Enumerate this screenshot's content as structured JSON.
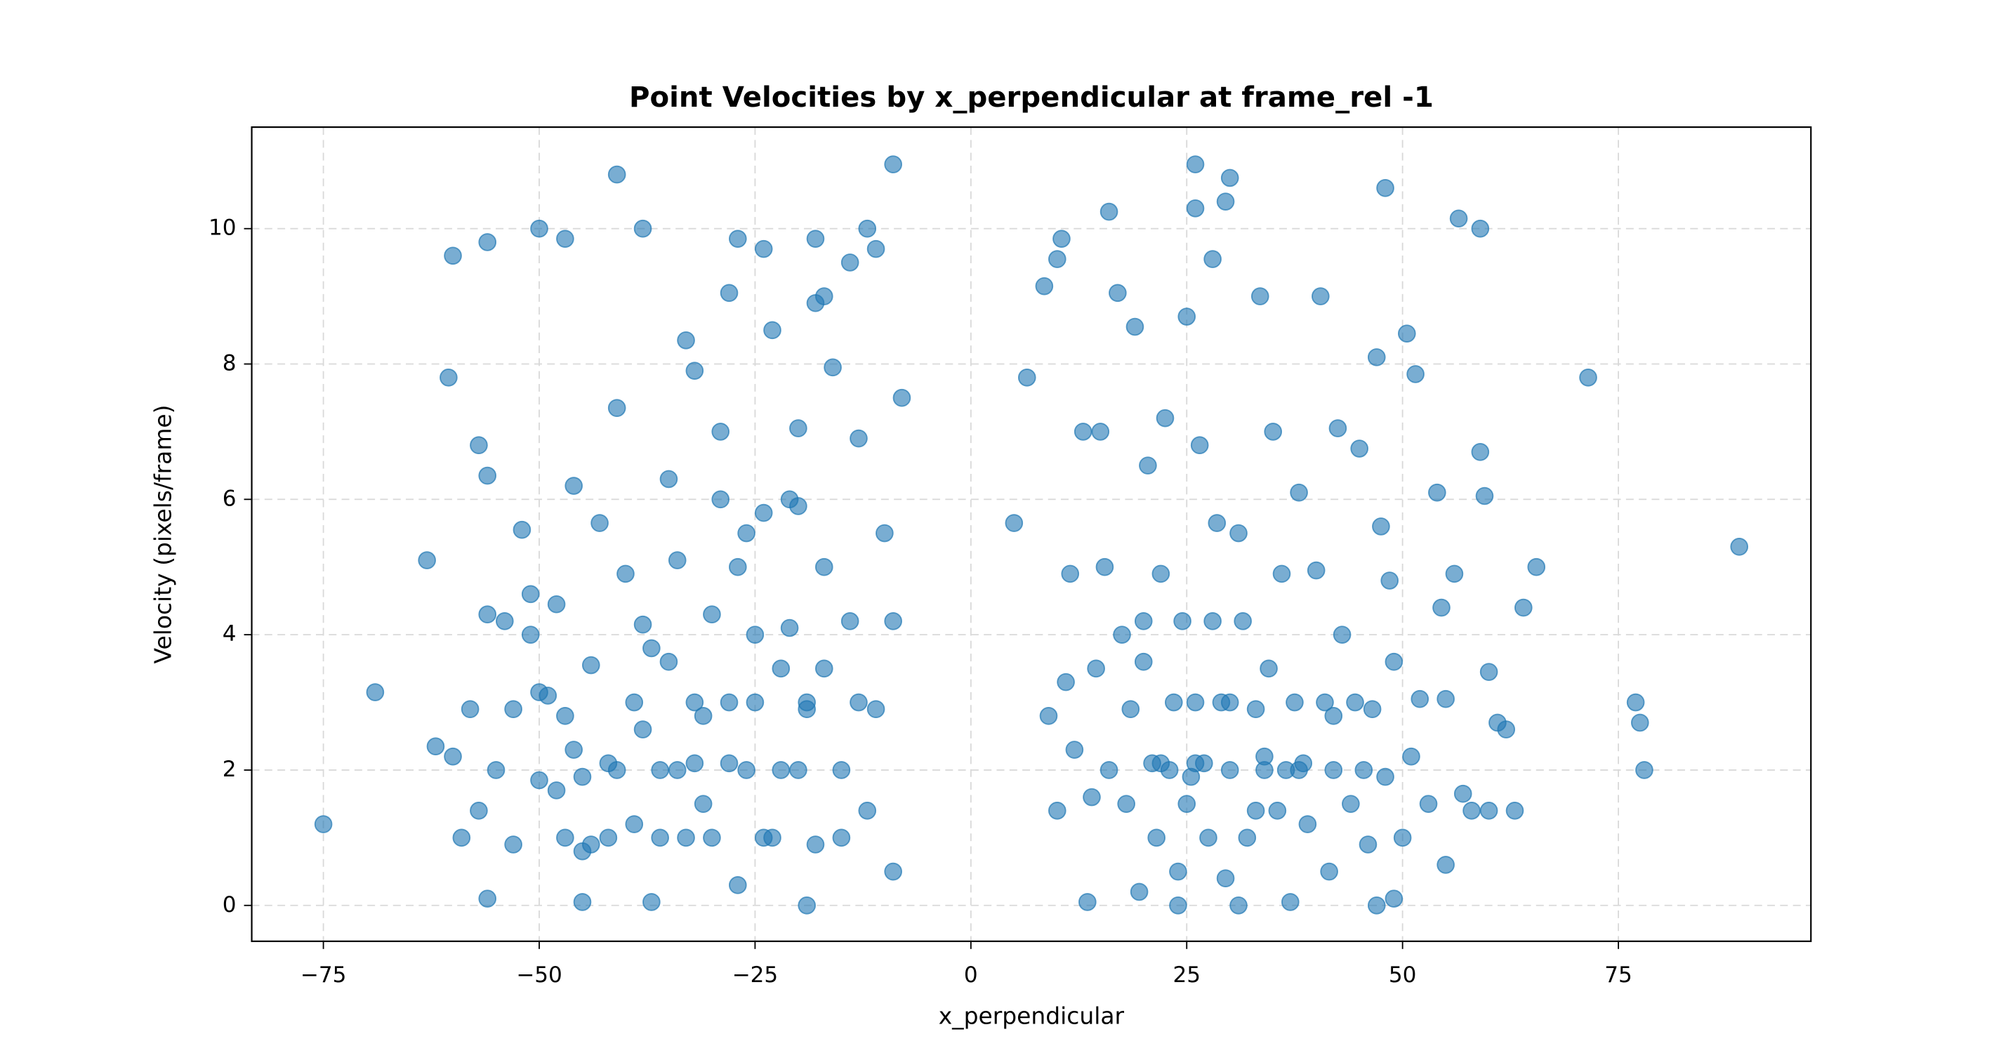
{
  "chart_data": {
    "type": "scatter",
    "title": "Point Velocities by x_perpendicular at frame_rel -1",
    "x_label": "x_perpendicular",
    "y_label": "Velocity (pixels/frame)",
    "color": "#1f77b4",
    "grid": true,
    "xlim": [
      -83.3,
      97.3
    ],
    "ylim": [
      -0.53,
      11.5
    ],
    "xticks": [
      {
        "value": -75,
        "label": "−75"
      },
      {
        "value": -50,
        "label": "−50"
      },
      {
        "value": -25,
        "label": "−25"
      },
      0,
      25,
      50,
      75
    ],
    "yticks": [
      0,
      2,
      4,
      6,
      8,
      10
    ],
    "x": [
      -75,
      -69,
      -63,
      -62,
      -60,
      -60.5,
      -56,
      -50,
      -47,
      -41,
      -38,
      -27,
      -24,
      -18,
      -12,
      -9,
      -11,
      5,
      6.5,
      8.5,
      10,
      10.5,
      16,
      26,
      26,
      29.5,
      30,
      48,
      56.5,
      59,
      71.5,
      89,
      77,
      77.5,
      78,
      64,
      65.5,
      60,
      61,
      62,
      60,
      63,
      -56,
      -45,
      -37,
      -19,
      24,
      31,
      47,
      49,
      55,
      -58,
      -57,
      -55,
      -54,
      -53,
      -52,
      -51,
      -50,
      -49,
      -48,
      -47,
      -46,
      -45,
      -44,
      -43,
      -42,
      -41,
      -40,
      -39,
      -38,
      -37,
      -36,
      -35,
      -34,
      -33,
      -32,
      -31,
      -30,
      -29,
      -28,
      -27,
      -26,
      -25,
      -24,
      -23,
      -22,
      -21,
      -20,
      -19,
      -18,
      -17,
      -16,
      -15,
      -14,
      -13,
      -12,
      -11,
      -10,
      -9,
      -8,
      -9,
      -13,
      -15,
      -17,
      -20,
      -22,
      -25,
      -28,
      -30,
      -32,
      -35,
      -38,
      -41,
      -44,
      -47,
      -50,
      -53,
      -56,
      -60,
      -59,
      -57,
      -56,
      -51,
      -46,
      -33,
      -29,
      -26,
      -23,
      -19,
      -21,
      -24,
      -27,
      -31,
      -34,
      -36,
      -39,
      -42,
      -45,
      -48,
      -18,
      -17,
      -14,
      -32,
      -28,
      -20,
      9,
      10,
      11,
      11.5,
      12,
      13,
      13.5,
      14,
      14.5,
      15,
      15.5,
      16,
      17,
      17.5,
      18,
      18.5,
      19,
      19.5,
      20,
      20.5,
      21,
      21.5,
      22,
      22.5,
      23,
      23.5,
      24,
      24.5,
      25,
      25.5,
      26,
      26.5,
      27,
      27.5,
      28,
      28.5,
      29,
      29.5,
      30,
      31,
      31.5,
      32,
      33,
      33.5,
      34,
      34.5,
      35,
      35.5,
      36,
      36.5,
      37,
      37.5,
      38,
      38.5,
      39,
      40,
      40.5,
      41,
      41.5,
      42,
      42.5,
      43,
      44,
      44.5,
      45,
      45.5,
      46,
      46.5,
      47,
      47.5,
      48,
      48.5,
      49,
      50,
      50.5,
      51,
      51.5,
      52,
      53,
      54,
      54.5,
      55,
      56,
      57,
      58,
      59,
      59.5,
      22,
      26,
      30,
      34,
      38,
      42,
      20,
      28,
      25,
      33
    ],
    "values": [
      1.2,
      3.15,
      5.1,
      2.35,
      9.6,
      7.8,
      9.8,
      10,
      9.85,
      10.8,
      10,
      9.85,
      9.7,
      9.85,
      10,
      10.95,
      9.7,
      5.65,
      7.8,
      9.15,
      9.55,
      9.85,
      10.25,
      10.95,
      10.3,
      10.4,
      10.75,
      10.6,
      10.15,
      10,
      7.8,
      5.3,
      3,
      2.7,
      2,
      4.4,
      5,
      3.45,
      2.7,
      2.6,
      1.4,
      1.4,
      0.1,
      0.05,
      0.05,
      0,
      0,
      0,
      0,
      0.1,
      0.6,
      2.9,
      1.4,
      2.0,
      4.2,
      2.9,
      5.55,
      4.0,
      1.85,
      3.1,
      4.45,
      1.0,
      2.3,
      0.8,
      3.55,
      5.65,
      2.1,
      7.35,
      4.9,
      1.2,
      2.6,
      3.8,
      1.0,
      6.3,
      2.0,
      8.35,
      3.0,
      1.5,
      4.3,
      7.0,
      2.1,
      0.3,
      5.5,
      3.0,
      1.0,
      8.5,
      2.0,
      4.1,
      5.9,
      2.9,
      0.9,
      3.5,
      7.95,
      2.0,
      4.2,
      6.9,
      1.4,
      2.9,
      5.5,
      0.5,
      7.5,
      4.2,
      3.0,
      1.0,
      5.0,
      2.0,
      3.5,
      4.0,
      3.0,
      1.0,
      2.1,
      3.6,
      4.15,
      2.0,
      0.9,
      2.8,
      3.15,
      0.9,
      4.3,
      2.2,
      1.0,
      6.8,
      6.35,
      4.6,
      6.2,
      1.0,
      6.0,
      2.0,
      1.0,
      3.0,
      6.0,
      5.8,
      5.0,
      2.8,
      5.1,
      2.0,
      3.0,
      1.0,
      1.9,
      1.7,
      8.9,
      9.0,
      9.5,
      7.9,
      9.05,
      7.05,
      2.8,
      1.4,
      3.3,
      4.9,
      2.3,
      7.0,
      0.05,
      1.6,
      3.5,
      7.0,
      5.0,
      2.0,
      9.05,
      4.0,
      1.5,
      2.9,
      8.55,
      0.2,
      3.6,
      6.5,
      2.1,
      1.0,
      4.9,
      7.2,
      2.0,
      3.0,
      0.5,
      4.2,
      8.7,
      1.9,
      3.0,
      6.8,
      2.1,
      1.0,
      9.55,
      5.65,
      3.0,
      0.4,
      2.0,
      5.5,
      4.2,
      1.0,
      2.9,
      9.0,
      2.0,
      3.5,
      7.0,
      1.4,
      4.9,
      2.0,
      0.05,
      3.0,
      6.1,
      2.1,
      1.2,
      4.95,
      9.0,
      3.0,
      0.5,
      2.0,
      7.05,
      4.0,
      1.5,
      3.0,
      6.75,
      2.0,
      0.9,
      2.9,
      8.1,
      5.6,
      1.9,
      4.8,
      3.6,
      1.0,
      8.45,
      2.2,
      7.85,
      3.05,
      1.5,
      6.1,
      4.4,
      3.05,
      4.9,
      1.65,
      1.4,
      6.7,
      6.05,
      2.1,
      2.1,
      3.0,
      2.2,
      2.0,
      2.8,
      4.2,
      4.2,
      1.5,
      1.4
    ]
  }
}
